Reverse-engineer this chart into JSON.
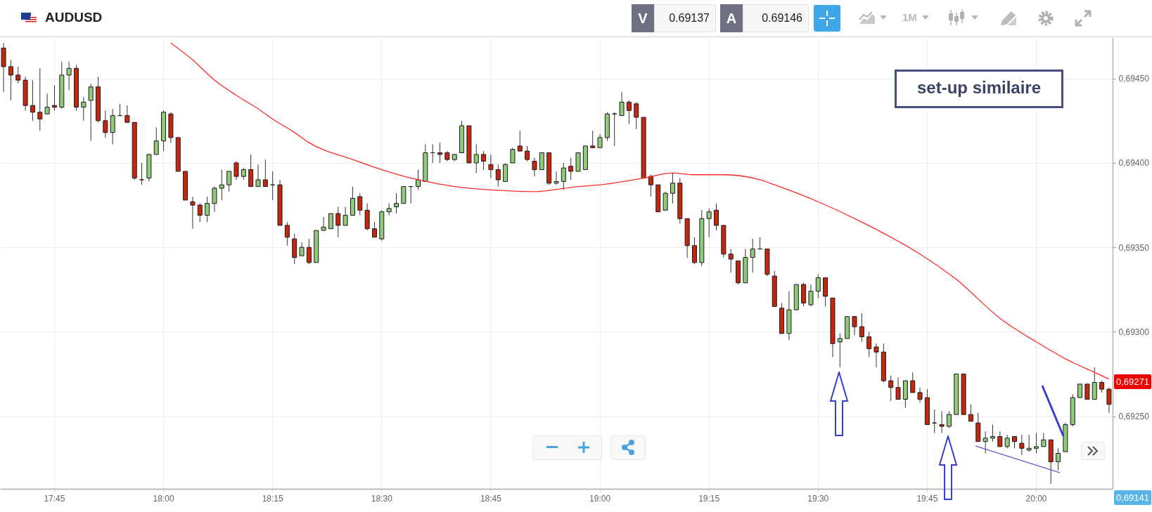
{
  "chart_data": {
    "type": "candlestick",
    "title": "AUDUSD",
    "categories": [
      null,
      null,
      null,
      null,
      null,
      null,
      null,
      "17:45",
      null,
      null,
      null,
      null,
      null,
      null,
      null,
      null,
      null,
      null,
      null,
      null,
      null,
      null,
      "18:00",
      null,
      null,
      null,
      null,
      null,
      null,
      null,
      null,
      null,
      null,
      null,
      null,
      null,
      null,
      "18:15",
      null,
      null,
      null,
      null,
      null,
      null,
      null,
      null,
      null,
      null,
      null,
      null,
      null,
      null,
      "18:30",
      null,
      null,
      null,
      null,
      null,
      null,
      null,
      null,
      null,
      null,
      null,
      null,
      null,
      null,
      "18:45",
      null,
      null,
      null,
      null,
      null,
      null,
      null,
      null,
      null,
      null,
      null,
      null,
      null,
      null,
      "19:00",
      null,
      null,
      null,
      null,
      null,
      null,
      null,
      null,
      null,
      null,
      null,
      null,
      null,
      null,
      "19:15",
      null,
      null,
      null,
      null,
      null,
      null,
      null,
      null,
      null,
      null,
      null,
      null,
      null,
      null,
      "19:30",
      null,
      null,
      null,
      null,
      null,
      null,
      null,
      null,
      null,
      null,
      null,
      null,
      null,
      null,
      "19:45",
      null,
      null,
      null,
      null,
      null,
      null,
      null,
      null,
      null,
      null,
      null,
      null,
      null,
      null,
      "20:00",
      null,
      null,
      null,
      null,
      null,
      null,
      null,
      null,
      null,
      null
    ],
    "ohlc": [
      [
        0.69468,
        0.69471,
        0.69442,
        0.69457
      ],
      [
        0.69457,
        0.69461,
        0.69437,
        0.69452
      ],
      [
        0.69452,
        0.69457,
        0.69447,
        0.69449
      ],
      [
        0.69449,
        0.69451,
        0.69431,
        0.69434
      ],
      [
        0.69434,
        0.69449,
        0.69425,
        0.6943
      ],
      [
        0.6943,
        0.69456,
        0.69419,
        0.69426
      ],
      [
        0.69429,
        0.69441,
        0.69429,
        0.69433
      ],
      [
        0.69434,
        0.69446,
        0.69431,
        0.69433
      ],
      [
        0.69433,
        0.6946,
        0.69432,
        0.69452
      ],
      [
        0.69452,
        0.6946,
        0.69443,
        0.69456
      ],
      [
        0.69456,
        0.69458,
        0.69431,
        0.69433
      ],
      [
        0.69433,
        0.69439,
        0.69425,
        0.69436
      ],
      [
        0.69437,
        0.69447,
        0.69413,
        0.69445
      ],
      [
        0.69445,
        0.69451,
        0.69424,
        0.69425
      ],
      [
        0.69425,
        0.69431,
        0.69415,
        0.69418
      ],
      [
        0.69418,
        0.69432,
        0.69411,
        0.69428
      ],
      [
        0.69428,
        0.69435,
        0.69428,
        0.69428
      ],
      [
        0.69428,
        0.69434,
        0.69424,
        0.69424
      ],
      [
        0.69424,
        0.69424,
        0.6939,
        0.69391
      ],
      [
        0.6939,
        0.694,
        0.69387,
        0.6939
      ],
      [
        0.69391,
        0.69405,
        0.69389,
        0.69405
      ],
      [
        0.69405,
        0.69421,
        0.69405,
        0.69413
      ],
      [
        0.69413,
        0.69431,
        0.69407,
        0.6943
      ],
      [
        0.69429,
        0.6943,
        0.69412,
        0.69415
      ],
      [
        0.69415,
        0.69415,
        0.69395,
        0.69395
      ],
      [
        0.69395,
        0.69395,
        0.69378,
        0.69378
      ],
      [
        0.69377,
        0.6938,
        0.69361,
        0.69375
      ],
      [
        0.69375,
        0.69376,
        0.69365,
        0.69369
      ],
      [
        0.69369,
        0.6938,
        0.69365,
        0.69376
      ],
      [
        0.69376,
        0.69386,
        0.69371,
        0.69385
      ],
      [
        0.69385,
        0.69396,
        0.69378,
        0.69387
      ],
      [
        0.69387,
        0.69395,
        0.69383,
        0.69395
      ],
      [
        0.694,
        0.69401,
        0.6939,
        0.69392
      ],
      [
        0.69392,
        0.69397,
        0.6939,
        0.69396
      ],
      [
        0.69396,
        0.69405,
        0.69386,
        0.69386
      ],
      [
        0.69386,
        0.69399,
        0.69386,
        0.6939
      ],
      [
        0.6939,
        0.69402,
        0.69386,
        0.69386
      ],
      [
        0.69387,
        0.69395,
        0.69378,
        0.69387
      ],
      [
        0.69387,
        0.6939,
        0.69363,
        0.69363
      ],
      [
        0.69363,
        0.69365,
        0.69351,
        0.69356
      ],
      [
        0.69355,
        0.69358,
        0.6934,
        0.69344
      ],
      [
        0.69345,
        0.69353,
        0.69345,
        0.6935
      ],
      [
        0.6935,
        0.69355,
        0.6934,
        0.69341
      ],
      [
        0.69341,
        0.6936,
        0.69341,
        0.6936
      ],
      [
        0.6936,
        0.69368,
        0.6936,
        0.69362
      ],
      [
        0.69361,
        0.6937,
        0.69361,
        0.6937
      ],
      [
        0.6937,
        0.69374,
        0.69356,
        0.69363
      ],
      [
        0.69363,
        0.69374,
        0.69363,
        0.69369
      ],
      [
        0.69369,
        0.69386,
        0.69369,
        0.69379
      ],
      [
        0.6938,
        0.69382,
        0.69369,
        0.69372
      ],
      [
        0.69372,
        0.69376,
        0.6936,
        0.69361
      ],
      [
        0.69361,
        0.69365,
        0.69356,
        0.69356
      ],
      [
        0.69355,
        0.69372,
        0.69354,
        0.69371
      ],
      [
        0.69371,
        0.69376,
        0.69369,
        0.69373
      ],
      [
        0.69374,
        0.69382,
        0.6937,
        0.69376
      ],
      [
        0.69376,
        0.69386,
        0.69376,
        0.69386
      ],
      [
        0.69386,
        0.69386,
        0.69376,
        0.69386
      ],
      [
        0.69386,
        0.69396,
        0.69384,
        0.6939
      ],
      [
        0.69389,
        0.69411,
        0.69389,
        0.69406
      ],
      [
        0.69406,
        0.69411,
        0.694,
        0.69406
      ],
      [
        0.69406,
        0.69412,
        0.694,
        0.69405
      ],
      [
        0.69406,
        0.69407,
        0.69401,
        0.69402
      ],
      [
        0.69402,
        0.69405,
        0.69401,
        0.69405
      ],
      [
        0.69406,
        0.69425,
        0.69406,
        0.69422
      ],
      [
        0.69422,
        0.69422,
        0.694,
        0.694
      ],
      [
        0.694,
        0.69411,
        0.69394,
        0.69405
      ],
      [
        0.69405,
        0.69407,
        0.69396,
        0.69401
      ],
      [
        0.69399,
        0.69405,
        0.69391,
        0.69396
      ],
      [
        0.69396,
        0.69399,
        0.69386,
        0.6939
      ],
      [
        0.69389,
        0.694,
        0.69389,
        0.69399
      ],
      [
        0.694,
        0.69409,
        0.694,
        0.69408
      ],
      [
        0.6941,
        0.69419,
        0.69407,
        0.69407
      ],
      [
        0.69407,
        0.6941,
        0.69401,
        0.69402
      ],
      [
        0.69401,
        0.69403,
        0.69392,
        0.69396
      ],
      [
        0.69396,
        0.69406,
        0.69396,
        0.69406
      ],
      [
        0.69406,
        0.69406,
        0.69387,
        0.69388
      ],
      [
        0.69388,
        0.69395,
        0.69387,
        0.69389
      ],
      [
        0.69389,
        0.694,
        0.69384,
        0.69397
      ],
      [
        0.69398,
        0.69403,
        0.6939,
        0.69395
      ],
      [
        0.69395,
        0.69406,
        0.69395,
        0.69406
      ],
      [
        0.69396,
        0.6941,
        0.69396,
        0.6941
      ],
      [
        0.6941,
        0.69419,
        0.69409,
        0.69409
      ],
      [
        0.69409,
        0.69417,
        0.69409,
        0.69415
      ],
      [
        0.69415,
        0.6943,
        0.69413,
        0.69429
      ],
      [
        0.69429,
        0.6943,
        0.6941,
        0.69429
      ],
      [
        0.69428,
        0.69442,
        0.69428,
        0.69436
      ],
      [
        0.69436,
        0.69437,
        0.69423,
        0.69431
      ],
      [
        0.69435,
        0.69436,
        0.6942,
        0.69427
      ],
      [
        0.69427,
        0.69427,
        0.69391,
        0.69391
      ],
      [
        0.69392,
        0.69393,
        0.6938,
        0.69387
      ],
      [
        0.69387,
        0.69387,
        0.69371,
        0.69371
      ],
      [
        0.69372,
        0.69383,
        0.69372,
        0.69382
      ],
      [
        0.69382,
        0.69394,
        0.69376,
        0.69388
      ],
      [
        0.69388,
        0.69391,
        0.69364,
        0.69367
      ],
      [
        0.69367,
        0.69367,
        0.69344,
        0.69351
      ],
      [
        0.69351,
        0.69356,
        0.6934,
        0.69341
      ],
      [
        0.69341,
        0.69372,
        0.69339,
        0.69367
      ],
      [
        0.69367,
        0.69373,
        0.69356,
        0.69371
      ],
      [
        0.69372,
        0.69376,
        0.6936,
        0.69363
      ],
      [
        0.69363,
        0.69363,
        0.69344,
        0.69346
      ],
      [
        0.69346,
        0.69349,
        0.69335,
        0.69343
      ],
      [
        0.69342,
        0.69342,
        0.69328,
        0.69329
      ],
      [
        0.69329,
        0.69349,
        0.69329,
        0.69344
      ],
      [
        0.69344,
        0.69355,
        0.69335,
        0.69349
      ],
      [
        0.69349,
        0.69356,
        0.69349,
        0.69349
      ],
      [
        0.69349,
        0.69349,
        0.69333,
        0.69334
      ],
      [
        0.69333,
        0.69336,
        0.69315,
        0.69315
      ],
      [
        0.69314,
        0.69317,
        0.69299,
        0.69299
      ],
      [
        0.69299,
        0.69324,
        0.69295,
        0.69313
      ],
      [
        0.69313,
        0.69328,
        0.69313,
        0.69328
      ],
      [
        0.69328,
        0.69329,
        0.69315,
        0.69317
      ],
      [
        0.69316,
        0.69328,
        0.69315,
        0.69324
      ],
      [
        0.69324,
        0.69334,
        0.6932,
        0.69332
      ],
      [
        0.69332,
        0.69332,
        0.69315,
        0.69321
      ],
      [
        0.6932,
        0.6932,
        0.69285,
        0.69293
      ],
      [
        0.69294,
        0.69299,
        0.69279,
        0.69296
      ],
      [
        0.69296,
        0.69309,
        0.69296,
        0.69309
      ],
      [
        0.69309,
        0.69309,
        0.69298,
        0.69303
      ],
      [
        0.69303,
        0.69311,
        0.69294,
        0.69297
      ],
      [
        0.69297,
        0.693,
        0.69285,
        0.6929
      ],
      [
        0.69291,
        0.69293,
        0.69279,
        0.69288
      ],
      [
        0.69288,
        0.69293,
        0.6927,
        0.69271
      ],
      [
        0.69271,
        0.69274,
        0.69259,
        0.69267
      ],
      [
        0.69267,
        0.69273,
        0.6926,
        0.6926
      ],
      [
        0.6926,
        0.69271,
        0.69255,
        0.69271
      ],
      [
        0.69271,
        0.69276,
        0.69264,
        0.69264
      ],
      [
        0.69264,
        0.69267,
        0.69258,
        0.6926
      ],
      [
        0.69261,
        0.69266,
        0.69245,
        0.69245
      ],
      [
        0.69246,
        0.69254,
        0.6924,
        0.69246
      ],
      [
        0.69245,
        0.69253,
        0.6924,
        0.69244
      ],
      [
        0.69244,
        0.69253,
        0.69243,
        0.69251
      ],
      [
        0.69251,
        0.69275,
        0.69251,
        0.69275
      ],
      [
        0.69275,
        0.69275,
        0.69251,
        0.69251
      ],
      [
        0.69251,
        0.69257,
        0.69247,
        0.69247
      ],
      [
        0.69246,
        0.69252,
        0.69235,
        0.69235
      ],
      [
        0.69235,
        0.69241,
        0.69228,
        0.69237
      ],
      [
        0.69237,
        0.69245,
        0.69235,
        0.69238
      ],
      [
        0.69238,
        0.69241,
        0.69232,
        0.69232
      ],
      [
        0.69232,
        0.69239,
        0.69231,
        0.69237
      ],
      [
        0.69238,
        0.69238,
        0.69231,
        0.69235
      ],
      [
        0.69234,
        0.69239,
        0.69227,
        0.69231
      ],
      [
        0.6923,
        0.69239,
        0.69229,
        0.69231
      ],
      [
        0.69231,
        0.6924,
        0.69228,
        0.69232
      ],
      [
        0.69232,
        0.6924,
        0.69232,
        0.69236
      ],
      [
        0.69236,
        0.69236,
        0.6921,
        0.69223
      ],
      [
        0.69223,
        0.69231,
        0.69218,
        0.69228
      ],
      [
        0.69229,
        0.69246,
        0.69229,
        0.69245
      ],
      [
        0.69245,
        0.69263,
        0.69244,
        0.69261
      ],
      [
        0.69261,
        0.69269,
        0.69261,
        0.69269
      ],
      [
        0.69269,
        0.69269,
        0.6926,
        0.6926
      ],
      [
        0.6926,
        0.69279,
        0.6926,
        0.6927
      ],
      [
        0.6927,
        0.69271,
        0.69264,
        0.69266
      ],
      [
        0.69266,
        0.69267,
        0.69252,
        0.69257
      ]
    ],
    "series": [
      {
        "type": "line",
        "color": "#ff2a2a",
        "values": [
          null,
          null,
          null,
          null,
          null,
          null,
          null,
          null,
          null,
          null,
          null,
          null,
          null,
          null,
          null,
          null,
          null,
          null,
          null,
          null,
          null,
          null,
          null,
          0.69471,
          null,
          null,
          0.69461,
          null,
          null,
          0.69449,
          null,
          null,
          0.6944,
          null,
          null,
          0.69432,
          null,
          0.69426,
          null,
          null,
          0.69418,
          null,
          0.69412,
          null,
          null,
          null,
          null,
          null,
          0.69402,
          null,
          null,
          null,
          0.69396,
          null,
          null,
          null,
          null,
          0.6939,
          null,
          null,
          null,
          null,
          0.69386,
          null,
          null,
          null,
          null,
          0.69384,
          null,
          null,
          null,
          null,
          null,
          0.69383,
          null,
          null,
          null,
          null,
          null,
          0.69386,
          null,
          null,
          0.69387,
          null,
          null,
          null,
          null,
          null,
          0.69391,
          null,
          null,
          null,
          0.69394,
          null,
          null,
          0.69393,
          null,
          null,
          null,
          0.69393,
          null,
          null,
          null,
          null,
          0.6939,
          null,
          0.69387,
          null,
          null,
          null,
          null,
          null,
          0.69377,
          null,
          null,
          null,
          null,
          null,
          0.69365,
          null,
          null,
          null,
          null,
          null,
          null,
          null,
          0.69346,
          null,
          null,
          null,
          null,
          0.69331,
          null,
          null,
          null,
          null,
          null,
          0.69308,
          null,
          null,
          null,
          null,
          0.69294,
          null,
          null,
          null,
          0.69284,
          null,
          null,
          null,
          0.69276,
          null,
          0.69272
        ]
      }
    ],
    "ylim": [
      0.69207,
      0.69474
    ],
    "yticks": [
      {
        "value": 0.6925,
        "label": "0,69250"
      },
      {
        "value": 0.693,
        "label": "0,69300"
      },
      {
        "value": 0.6935,
        "label": "0,69350"
      },
      {
        "value": 0.694,
        "label": "0,69400"
      },
      {
        "value": 0.6945,
        "label": "0,69450"
      }
    ],
    "grid": true,
    "annotations": [
      "V",
      "0.69137",
      "A",
      "0.69146",
      "1M",
      "set-up similaire",
      "0,69141",
      "0,69271"
    ]
  }
}
